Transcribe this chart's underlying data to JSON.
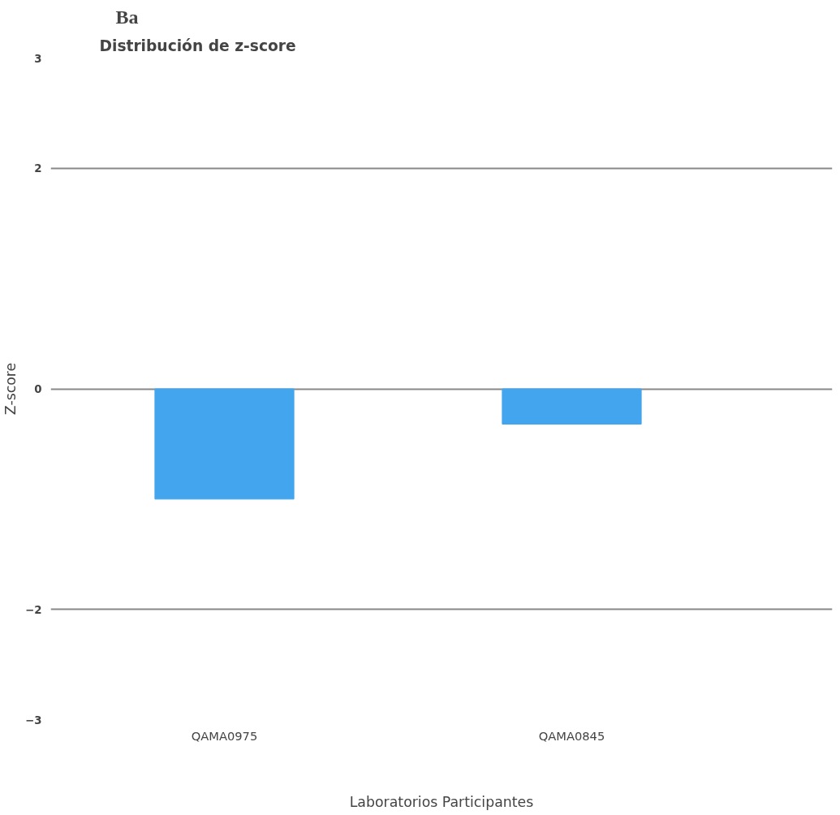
{
  "chart_data": {
    "type": "bar",
    "title": "Ba",
    "subtitle": "Distribución  de z-score",
    "xlabel": "Laboratorios Participantes",
    "ylabel": "Z-score",
    "categories": [
      "QAMA0975",
      "QAMA0845"
    ],
    "values": [
      -1.0,
      -0.32
    ],
    "color": "#42a5ee",
    "ylim": [
      -3,
      3
    ],
    "yticks": [
      -3,
      -2,
      0,
      2,
      3
    ],
    "grid": "y"
  }
}
